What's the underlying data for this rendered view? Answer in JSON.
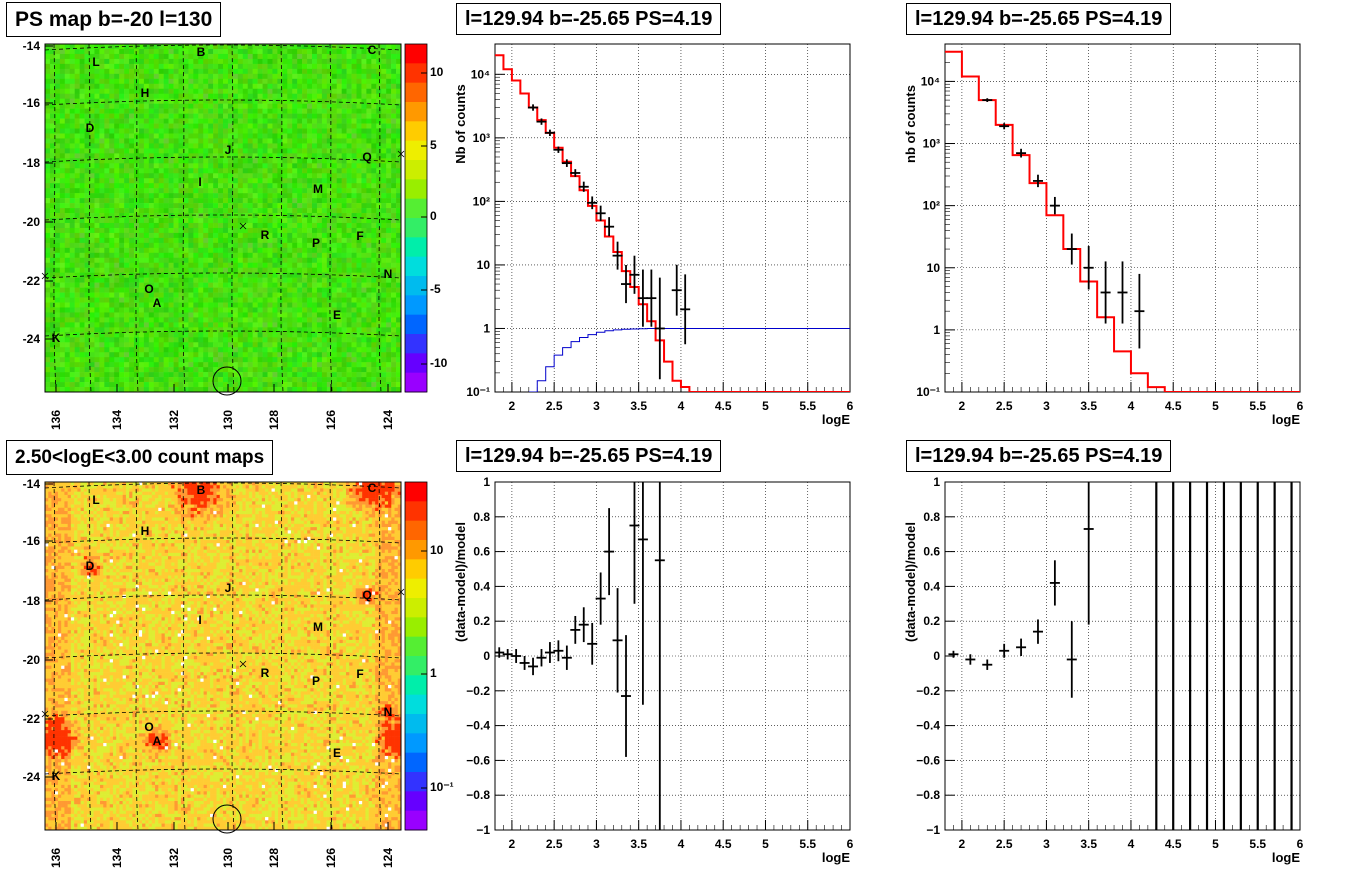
{
  "panels": {
    "map_top_title": "PS map b=-20 l=130",
    "map_bottom_title": "2.50<logE<3.00 count maps",
    "spec_title": "l=129.94 b=-25.65 PS=4.19"
  },
  "maps": {
    "lon_ticks": [
      "136",
      "134",
      "132",
      "130",
      "128",
      "126",
      "124"
    ],
    "lat_ticks": [
      "-14",
      "-16",
      "-18",
      "-20",
      "-22",
      "-24"
    ],
    "source_labels": [
      "L",
      "B",
      "C",
      "H",
      "D",
      "J",
      "Q",
      "I",
      "M",
      "R",
      "P",
      "F",
      "N",
      "O",
      "A",
      "E",
      "K"
    ],
    "top_colorbar_ticks": [
      "10",
      "5",
      "0",
      "-5",
      "-10"
    ],
    "bottom_colorbar_ticks": [
      "10",
      "1",
      "10⁻¹"
    ]
  },
  "colors": {
    "model": "#ff0000",
    "exposure": "#0000cc",
    "data": "#000000"
  },
  "chart_data": [
    {
      "type": "line",
      "panel": "top-middle",
      "title": "l=129.94 b=-25.65 PS=4.19",
      "xlabel": "logE",
      "ylabel": "Nb of counts",
      "xlim": [
        1.8,
        6
      ],
      "ylim": [
        0.1,
        30000
      ],
      "yscale": "log",
      "grid": true,
      "x_ticks": [
        "2",
        "2.5",
        "3",
        "3.5",
        "4",
        "4.5",
        "5",
        "5.5",
        "6"
      ],
      "y_ticks": [
        "10⁻¹",
        "1",
        "10",
        "10²",
        "10³",
        "10⁴"
      ],
      "series": [
        {
          "role": "model",
          "x": [
            1.8,
            1.9,
            2.0,
            2.1,
            2.2,
            2.3,
            2.4,
            2.5,
            2.6,
            2.7,
            2.8,
            2.9,
            3.0,
            3.1,
            3.2,
            3.3,
            3.4,
            3.5,
            3.6,
            3.7,
            3.8,
            3.9,
            4.0,
            4.1,
            4.2,
            4.3,
            4.4,
            4.5,
            4.6,
            4.7,
            4.8,
            4.9,
            5.0,
            5.1,
            5.2,
            5.3,
            5.4,
            5.5,
            5.6,
            5.7,
            5.8,
            5.9
          ],
          "values": [
            20000,
            12000,
            8000,
            5000,
            3000,
            1900,
            1200,
            700,
            420,
            250,
            150,
            85,
            50,
            28,
            16,
            8,
            4.5,
            2.4,
            1.3,
            0.65,
            0.3,
            0.15,
            0.12,
            0.1,
            0.1,
            0.1,
            0.1,
            0.1,
            0.1,
            0.1,
            0.1,
            0.1,
            0.1,
            0.1,
            0.1,
            0.1,
            0.1,
            0.1,
            0.1,
            0.1,
            0.1,
            0.1
          ]
        },
        {
          "role": "exposure",
          "x": [
            2.2,
            2.3,
            2.4,
            2.5,
            2.6,
            2.7,
            2.8,
            2.9,
            3.0,
            3.1,
            3.2,
            3.3,
            3.4,
            3.5,
            3.6,
            3.7,
            3.8,
            3.9,
            4.0,
            4.1,
            4.2,
            4.3,
            4.4,
            4.5,
            4.6,
            4.7,
            4.8,
            4.9,
            5.0,
            5.1,
            5.2,
            5.3,
            5.4,
            5.5,
            5.6,
            5.7,
            5.8,
            5.9
          ],
          "values": [
            0.1,
            0.15,
            0.25,
            0.38,
            0.5,
            0.62,
            0.72,
            0.8,
            0.87,
            0.92,
            0.95,
            0.97,
            0.98,
            0.99,
            1,
            1,
            1,
            1,
            1,
            1,
            1,
            1,
            1,
            1,
            1,
            1,
            1,
            1,
            1,
            1,
            1,
            1,
            1,
            1,
            1,
            1,
            1,
            1
          ]
        },
        {
          "role": "data",
          "x": [
            2.25,
            2.35,
            2.45,
            2.55,
            2.65,
            2.75,
            2.85,
            2.95,
            3.05,
            3.15,
            3.25,
            3.35,
            3.45,
            3.55,
            3.65,
            3.75,
            3.95,
            4.05
          ],
          "values": [
            3000,
            1800,
            1200,
            650,
            400,
            280,
            170,
            95,
            65,
            40,
            14,
            5,
            7,
            3,
            3,
            1,
            4,
            2
          ],
          "err": [
            0.05,
            0.05,
            0.05,
            0.05,
            0.06,
            0.06,
            0.08,
            0.1,
            0.12,
            0.15,
            0.22,
            0.3,
            0.3,
            0.45,
            0.45,
            0.8,
            0.4,
            0.55
          ]
        }
      ]
    },
    {
      "type": "line",
      "panel": "top-right",
      "title": "l=129.94 b=-25.65 PS=4.19",
      "xlabel": "logE",
      "ylabel": "nb of counts",
      "xlim": [
        1.8,
        6
      ],
      "ylim": [
        0.1,
        40000
      ],
      "yscale": "log",
      "grid": true,
      "x_ticks": [
        "2",
        "2.5",
        "3",
        "3.5",
        "4",
        "4.5",
        "5",
        "5.5",
        "6"
      ],
      "y_ticks": [
        "10⁻¹",
        "1",
        "10",
        "10²",
        "10³",
        "10⁴"
      ],
      "series": [
        {
          "role": "model",
          "x": [
            1.8,
            2.0,
            2.2,
            2.4,
            2.6,
            2.8,
            3.0,
            3.2,
            3.4,
            3.6,
            3.8,
            4.0,
            4.2,
            4.4,
            4.6,
            4.8,
            5.0,
            5.2,
            5.4,
            5.6,
            5.8
          ],
          "values": [
            30000,
            12000,
            5000,
            2000,
            650,
            230,
            70,
            20,
            6,
            1.6,
            0.45,
            0.2,
            0.12,
            0.1,
            0.1,
            0.1,
            0.1,
            0.1,
            0.1,
            0.1,
            0.1
          ]
        },
        {
          "role": "data",
          "x": [
            2.3,
            2.5,
            2.7,
            2.9,
            3.1,
            3.3,
            3.5,
            3.7,
            3.9,
            4.1
          ],
          "values": [
            5000,
            1900,
            700,
            250,
            100,
            20,
            10,
            4,
            4,
            2
          ],
          "err": [
            0.03,
            0.05,
            0.07,
            0.1,
            0.14,
            0.25,
            0.35,
            0.5,
            0.5,
            0.6
          ]
        }
      ]
    },
    {
      "type": "scatter",
      "panel": "bottom-middle",
      "title": "l=129.94 b=-25.65 PS=4.19",
      "xlabel": "logE",
      "ylabel": "(data-model)/model",
      "xlim": [
        1.8,
        6
      ],
      "ylim": [
        -1,
        1
      ],
      "grid": true,
      "x_ticks": [
        "2",
        "2.5",
        "3",
        "3.5",
        "4",
        "4.5",
        "5",
        "5.5",
        "6"
      ],
      "y_ticks": [
        "−1",
        "−0.8",
        "−0.6",
        "−0.4",
        "−0.2",
        "0",
        "0.2",
        "0.4",
        "0.6",
        "0.8",
        "1"
      ],
      "series": [
        {
          "role": "data",
          "x": [
            1.85,
            1.95,
            2.05,
            2.15,
            2.25,
            2.35,
            2.45,
            2.55,
            2.65,
            2.75,
            2.85,
            2.95,
            3.05,
            3.15,
            3.25,
            3.35,
            3.45,
            3.55,
            3.75
          ],
          "values": [
            0.02,
            0.01,
            0.0,
            -0.04,
            -0.06,
            -0.01,
            0.02,
            0.03,
            -0.01,
            0.15,
            0.18,
            0.07,
            0.33,
            0.6,
            0.09,
            -0.23,
            0.75,
            0.67,
            0.55
          ],
          "err": [
            0.03,
            0.03,
            0.04,
            0.04,
            0.05,
            0.05,
            0.06,
            0.06,
            0.07,
            0.08,
            0.1,
            0.12,
            0.15,
            0.25,
            0.3,
            0.35,
            0.45,
            0.95,
            1.6
          ]
        }
      ]
    },
    {
      "type": "scatter",
      "panel": "bottom-right",
      "title": "l=129.94 b=-25.65 PS=4.19",
      "xlabel": "logE",
      "ylabel": "(data-model)/model",
      "xlim": [
        1.8,
        6
      ],
      "ylim": [
        -1,
        1
      ],
      "grid": true,
      "x_ticks": [
        "2",
        "2.5",
        "3",
        "3.5",
        "4",
        "4.5",
        "5",
        "5.5",
        "6"
      ],
      "y_ticks": [
        "−1",
        "−0.8",
        "−0.6",
        "−0.4",
        "−0.2",
        "0",
        "0.2",
        "0.4",
        "0.6",
        "0.8",
        "1"
      ],
      "series": [
        {
          "role": "data",
          "x": [
            1.9,
            2.1,
            2.3,
            2.5,
            2.7,
            2.9,
            3.1,
            3.3,
            3.5
          ],
          "values": [
            0.01,
            -0.02,
            -0.05,
            0.03,
            0.05,
            0.14,
            0.42,
            -0.02,
            0.73
          ],
          "err": [
            0.02,
            0.03,
            0.03,
            0.04,
            0.05,
            0.07,
            0.13,
            0.22,
            0.55
          ]
        },
        {
          "role": "full-range-bars",
          "x": [
            4.3,
            4.5,
            4.7,
            4.9,
            5.1,
            5.3,
            5.5,
            5.7,
            5.9
          ]
        }
      ]
    }
  ]
}
